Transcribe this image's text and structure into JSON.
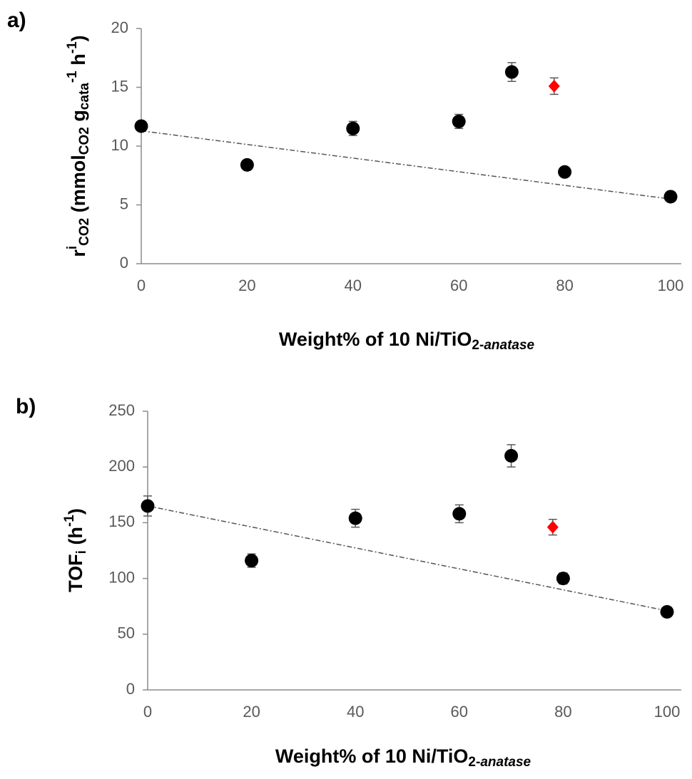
{
  "chart_data": [
    {
      "type": "scatter",
      "title": "a)",
      "xlabel": [
        {
          "text": "Weight% of 10 Ni/TiO",
          "pos": "base"
        },
        {
          "text": "2-",
          "pos": "sub"
        },
        {
          "text": "anatase",
          "pos": "sub-italic"
        }
      ],
      "ylabel": [
        {
          "text": "r",
          "pos": "base"
        },
        {
          "text": "i",
          "pos": "sup"
        },
        {
          "text": "CO2",
          "pos": "sub"
        },
        {
          "text": " (mmol",
          "pos": "base"
        },
        {
          "text": "CO2",
          "pos": "sub"
        },
        {
          "text": " g",
          "pos": "base"
        },
        {
          "text": "cata",
          "pos": "sub"
        },
        {
          "text": "-1",
          "pos": "sup"
        },
        {
          "text": " h",
          "pos": "base"
        },
        {
          "text": "-1",
          "pos": "sup"
        },
        {
          "text": ")",
          "pos": "base"
        }
      ],
      "xlim": [
        0,
        100
      ],
      "xticks": [
        0,
        20,
        40,
        60,
        80,
        100
      ],
      "ylim": [
        0,
        20
      ],
      "yticks": [
        0,
        5,
        10,
        15,
        20
      ],
      "series": [
        {
          "color": "#000000",
          "marker": "circle",
          "x": [
            0,
            20,
            40,
            60,
            70,
            80,
            100
          ],
          "values": [
            11.7,
            8.4,
            11.5,
            12.1,
            16.3,
            7.8,
            5.7
          ],
          "errors": [
            0.3,
            0.3,
            0.6,
            0.6,
            0.8,
            0.4,
            0.3
          ]
        },
        {
          "color": "#ff0000",
          "marker": "diamond",
          "x": [
            78
          ],
          "values": [
            15.1
          ],
          "errors": [
            0.7
          ]
        }
      ],
      "trendline": {
        "color": "#555555",
        "x": [
          0,
          100
        ],
        "values": [
          11.3,
          5.5
        ]
      }
    },
    {
      "type": "scatter",
      "title": "b)",
      "xlabel": [
        {
          "text": "Weight% of 10 Ni/TiO",
          "pos": "base"
        },
        {
          "text": "2-",
          "pos": "sub"
        },
        {
          "text": "anatase",
          "pos": "sub-italic"
        }
      ],
      "ylabel": [
        {
          "text": "TOF",
          "pos": "base"
        },
        {
          "text": "i",
          "pos": "sub"
        },
        {
          "text": " (h",
          "pos": "base"
        },
        {
          "text": "-1",
          "pos": "sup"
        },
        {
          "text": ")",
          "pos": "base"
        }
      ],
      "xlim": [
        0,
        100
      ],
      "xticks": [
        0,
        20,
        40,
        60,
        80,
        100
      ],
      "ylim": [
        0,
        250
      ],
      "yticks": [
        0,
        50,
        100,
        150,
        200,
        250
      ],
      "series": [
        {
          "color": "#000000",
          "marker": "circle",
          "x": [
            0,
            20,
            40,
            60,
            70,
            80,
            100
          ],
          "values": [
            165,
            116,
            154,
            158,
            210,
            100,
            70
          ],
          "errors": [
            9,
            6,
            8,
            8,
            10,
            5,
            3
          ]
        },
        {
          "color": "#ff0000",
          "marker": "diamond",
          "x": [
            78
          ],
          "values": [
            146
          ],
          "errors": [
            7
          ]
        }
      ],
      "trendline": {
        "color": "#555555",
        "x": [
          0,
          100
        ],
        "values": [
          165,
          71
        ]
      }
    }
  ]
}
